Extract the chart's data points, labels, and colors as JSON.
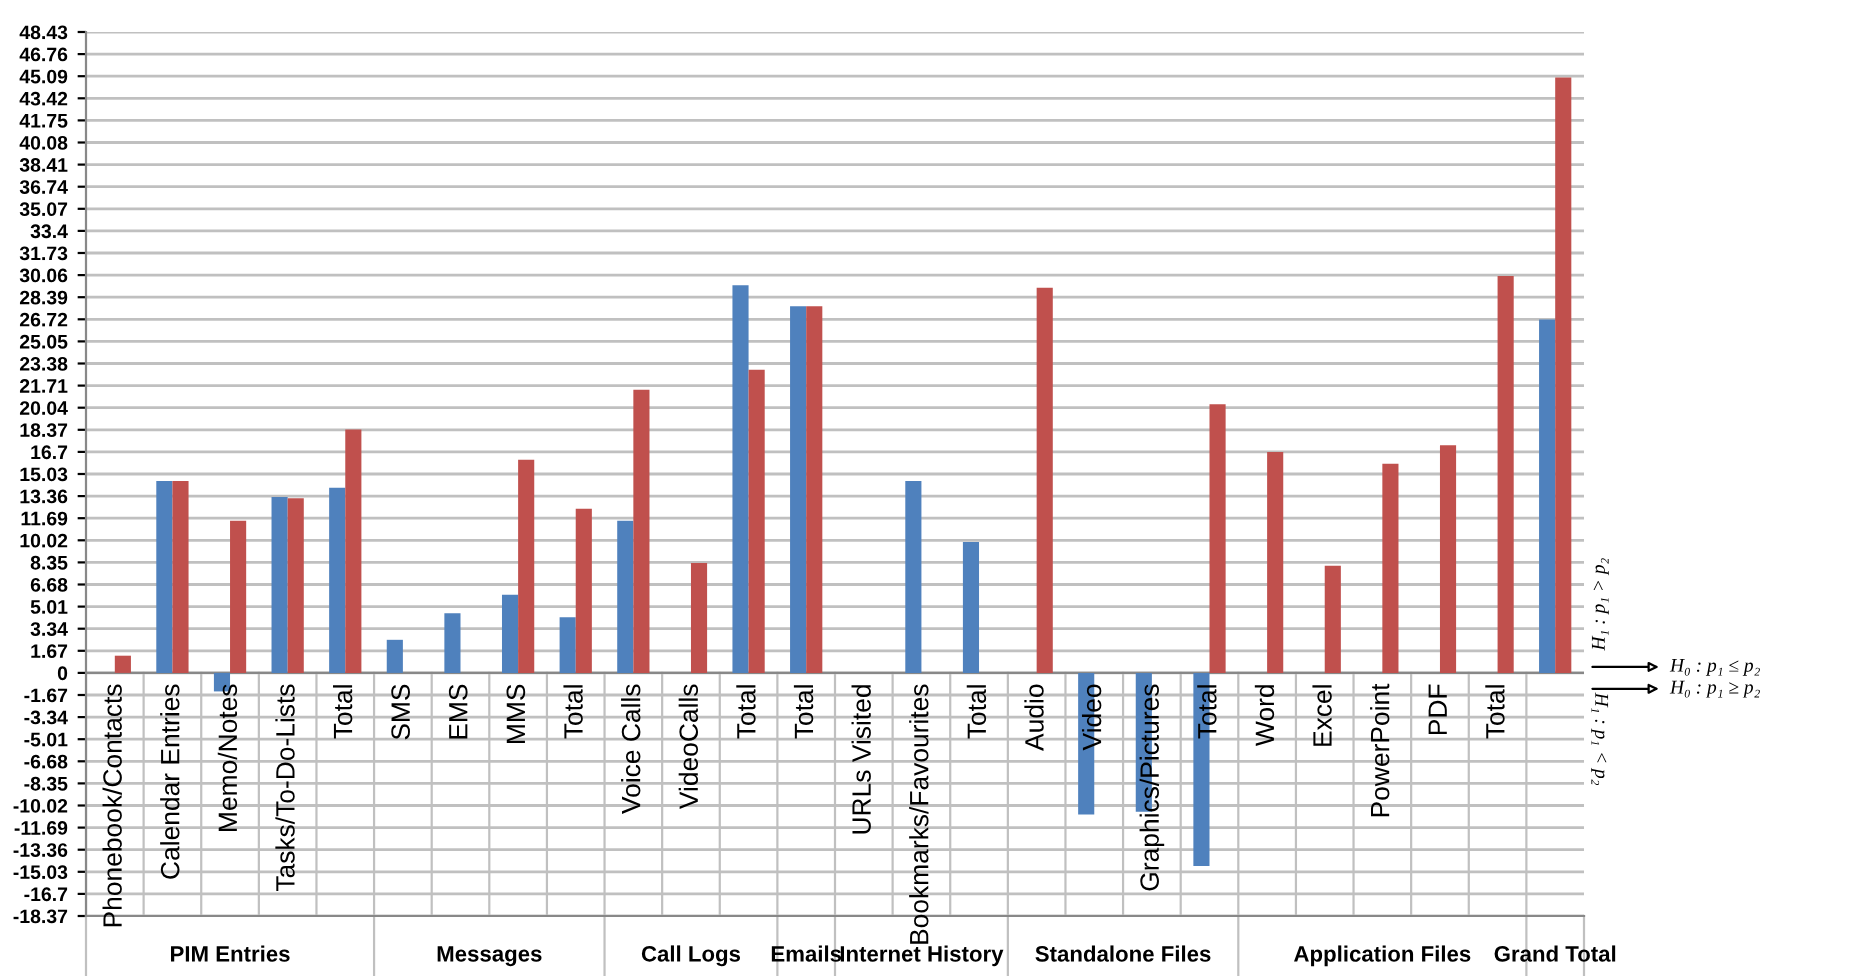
{
  "chart_data": {
    "type": "bar",
    "categories": [
      "Phonebook/Contacts",
      "Calendar Entries",
      "Memo/Notes",
      "Tasks/To-Do-Lists",
      "Total",
      "SMS",
      "EMS",
      "MMS",
      "Total",
      "Voice Calls",
      "VideoCalls",
      "Total",
      "Total",
      "URLs Visited",
      "Bookmarks/Favourites",
      "Total",
      "Audio",
      "Video",
      "Graphics/Pictures",
      "Total",
      "Word",
      "Excel",
      "PowerPoint",
      "PDF",
      "Total",
      null
    ],
    "series": [
      {
        "color": "#4f81bd",
        "values": [
          0,
          14.5,
          -1.4,
          13.3,
          14.0,
          2.5,
          4.5,
          5.9,
          4.2,
          11.5,
          0,
          29.3,
          27.7,
          0,
          14.5,
          9.9,
          0,
          -10.7,
          -10.5,
          -14.6,
          0,
          0,
          0,
          0,
          0,
          26.7
        ]
      },
      {
        "color": "#c0504d",
        "values": [
          1.3,
          14.5,
          11.5,
          13.2,
          18.4,
          0,
          0,
          16.1,
          12.4,
          21.4,
          8.3,
          22.9,
          27.7,
          0,
          0,
          0,
          29.1,
          0,
          0,
          20.3,
          16.7,
          8.1,
          15.8,
          17.2,
          30.0,
          45.0
        ]
      }
    ],
    "ylim": [
      -18.37,
      48.43
    ],
    "yticks": [
      -18.37,
      -16.7,
      -15.03,
      -13.36,
      -11.69,
      -10.02,
      -8.35,
      -6.68,
      -5.01,
      -3.34,
      -1.67,
      0,
      1.67,
      3.34,
      5.01,
      6.68,
      8.35,
      10.02,
      11.69,
      13.36,
      15.03,
      16.7,
      18.37,
      20.04,
      21.71,
      23.38,
      25.05,
      26.72,
      28.39,
      30.06,
      31.73,
      33.4,
      35.07,
      36.74,
      38.41,
      40.08,
      41.75,
      43.42,
      45.09,
      46.76,
      48.43
    ],
    "grid": "y",
    "annotations": [
      "PIM Entries",
      "Messages",
      "Call Logs",
      "Emails",
      "Internet History",
      "Standalone Files",
      "Application Files",
      "Grand Total",
      "H₁ : p₁ > p₂",
      "H₀ : p₁ ≤ p₂",
      "H₀ : p₁ ≥ p₂",
      "H₁ : p₁ < p₂"
    ]
  }
}
